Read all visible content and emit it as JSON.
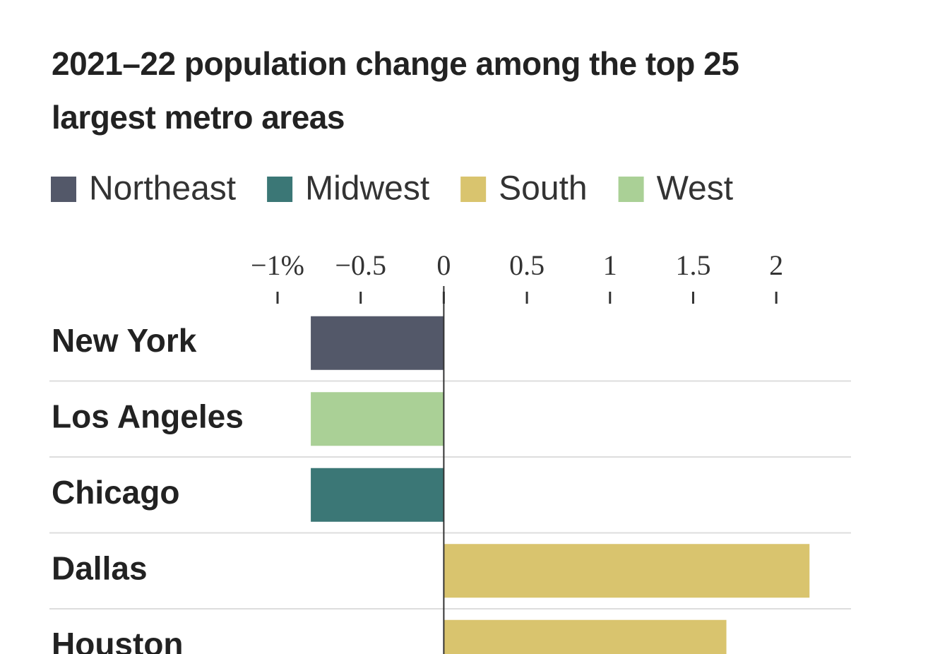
{
  "chart_data": {
    "type": "bar",
    "orientation": "horizontal",
    "title": "2021–22 population change among the top 25 largest metro areas",
    "categories": [
      "New York",
      "Los Angeles",
      "Chicago",
      "Dallas",
      "Houston"
    ],
    "series": [
      {
        "name": "Northeast",
        "color": "#535869",
        "values": [
          -0.8,
          null,
          null,
          null,
          null
        ]
      },
      {
        "name": "Midwest",
        "color": "#3b7776",
        "values": [
          null,
          null,
          -0.8,
          null,
          null
        ]
      },
      {
        "name": "South",
        "color": "#d9c46e",
        "values": [
          null,
          null,
          null,
          2.2,
          1.7
        ]
      },
      {
        "name": "West",
        "color": "#aad096",
        "values": [
          null,
          -0.8,
          null,
          null,
          null
        ]
      }
    ],
    "xlim": [
      -1,
      2.25
    ],
    "xticks": [
      {
        "value": -1,
        "label": "−1%"
      },
      {
        "value": -0.5,
        "label": "−0.5"
      },
      0,
      0.5,
      1,
      1.5,
      2
    ]
  }
}
